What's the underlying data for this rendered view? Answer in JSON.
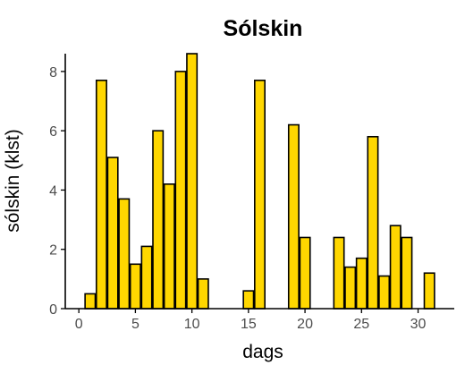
{
  "chart_data": {
    "type": "bar",
    "title": "Sólskin",
    "xlabel": "dags",
    "ylabel": "sólskin (klst)",
    "bar_color": "#FFD700",
    "xlim": [
      -1.2,
      33.2
    ],
    "ylim": [
      0,
      8.6
    ],
    "xticks": [
      0,
      5,
      10,
      15,
      20,
      25,
      30
    ],
    "yticks": [
      0,
      2,
      4,
      6,
      8
    ],
    "grid": false,
    "x": [
      1,
      2,
      3,
      4,
      5,
      6,
      7,
      8,
      9,
      10,
      11,
      12,
      13,
      14,
      15,
      16,
      17,
      18,
      19,
      20,
      21,
      22,
      23,
      24,
      25,
      26,
      27,
      28,
      29,
      30,
      31
    ],
    "values": [
      0.5,
      7.7,
      5.1,
      3.7,
      1.5,
      2.1,
      6.0,
      4.2,
      8.0,
      8.6,
      1.0,
      0,
      0,
      0,
      0.6,
      7.7,
      0,
      0,
      6.2,
      2.4,
      0,
      0,
      2.4,
      1.4,
      1.7,
      5.8,
      1.1,
      2.8,
      2.4,
      0,
      1.2
    ]
  }
}
